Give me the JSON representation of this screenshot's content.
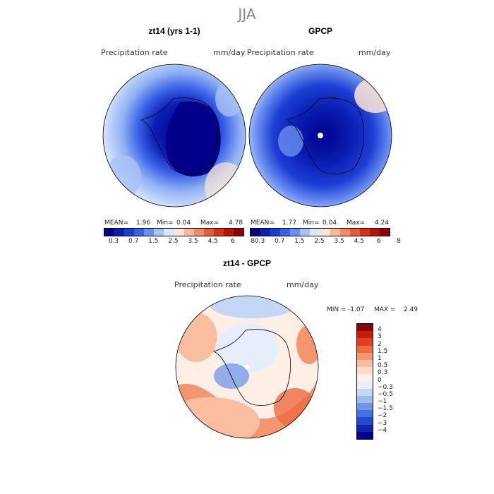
{
  "season": "JJA",
  "panels": [
    {
      "title": "zt14 (yrs 1-1)",
      "var_label": "Precipitation rate",
      "units": "mm/day",
      "mean_label": "MEAN=",
      "mean": "1.96",
      "min_label": "Min=",
      "min": "0.04",
      "max_label": "Max=",
      "max": "4.78"
    },
    {
      "title": "GPCP",
      "var_label": "Precipitation rate",
      "units": "mm/day",
      "mean_label": "MEAN=",
      "mean": "1.77",
      "min_label": "Min=",
      "min": "0.04",
      "max_label": "Max=",
      "max": "4.24"
    }
  ],
  "horiz_colorbar": {
    "ticks": [
      "0.3",
      "0.7",
      "1.5",
      "2.5",
      "3.5",
      "4.5",
      "6",
      "8"
    ],
    "colors": [
      "#00008b",
      "#0a1fb4",
      "#1c3fd4",
      "#3a62e8",
      "#6b8ff0",
      "#a8c2f5",
      "#dbe7fb",
      "#fbe5d6",
      "#f8b898",
      "#f28a66",
      "#ea5a36",
      "#d83018",
      "#b81408",
      "#8b0000"
    ]
  },
  "diff": {
    "title": "zt14 - GPCP",
    "var_label": "Precipitation rate",
    "units": "mm/day",
    "min_label": "MIN =",
    "min": "-1.07",
    "max_label": "MAX =",
    "max": "2.49",
    "ticks": [
      "4",
      "3",
      "2",
      "1.5",
      "1",
      "0.5",
      "0.3",
      "0",
      "−0.3",
      "−0.5",
      "−1",
      "−1.5",
      "−2",
      "−3",
      "−4"
    ],
    "colors": [
      "#8b0000",
      "#c81a0a",
      "#e0401c",
      "#ee6a40",
      "#f49670",
      "#f8bea0",
      "#fcdcc8",
      "#fdefe4",
      "#e6eefb",
      "#c4d8f6",
      "#9cbcf0",
      "#6e97ea",
      "#4670e0",
      "#2448d0",
      "#0c24b0",
      "#00008b"
    ]
  }
}
